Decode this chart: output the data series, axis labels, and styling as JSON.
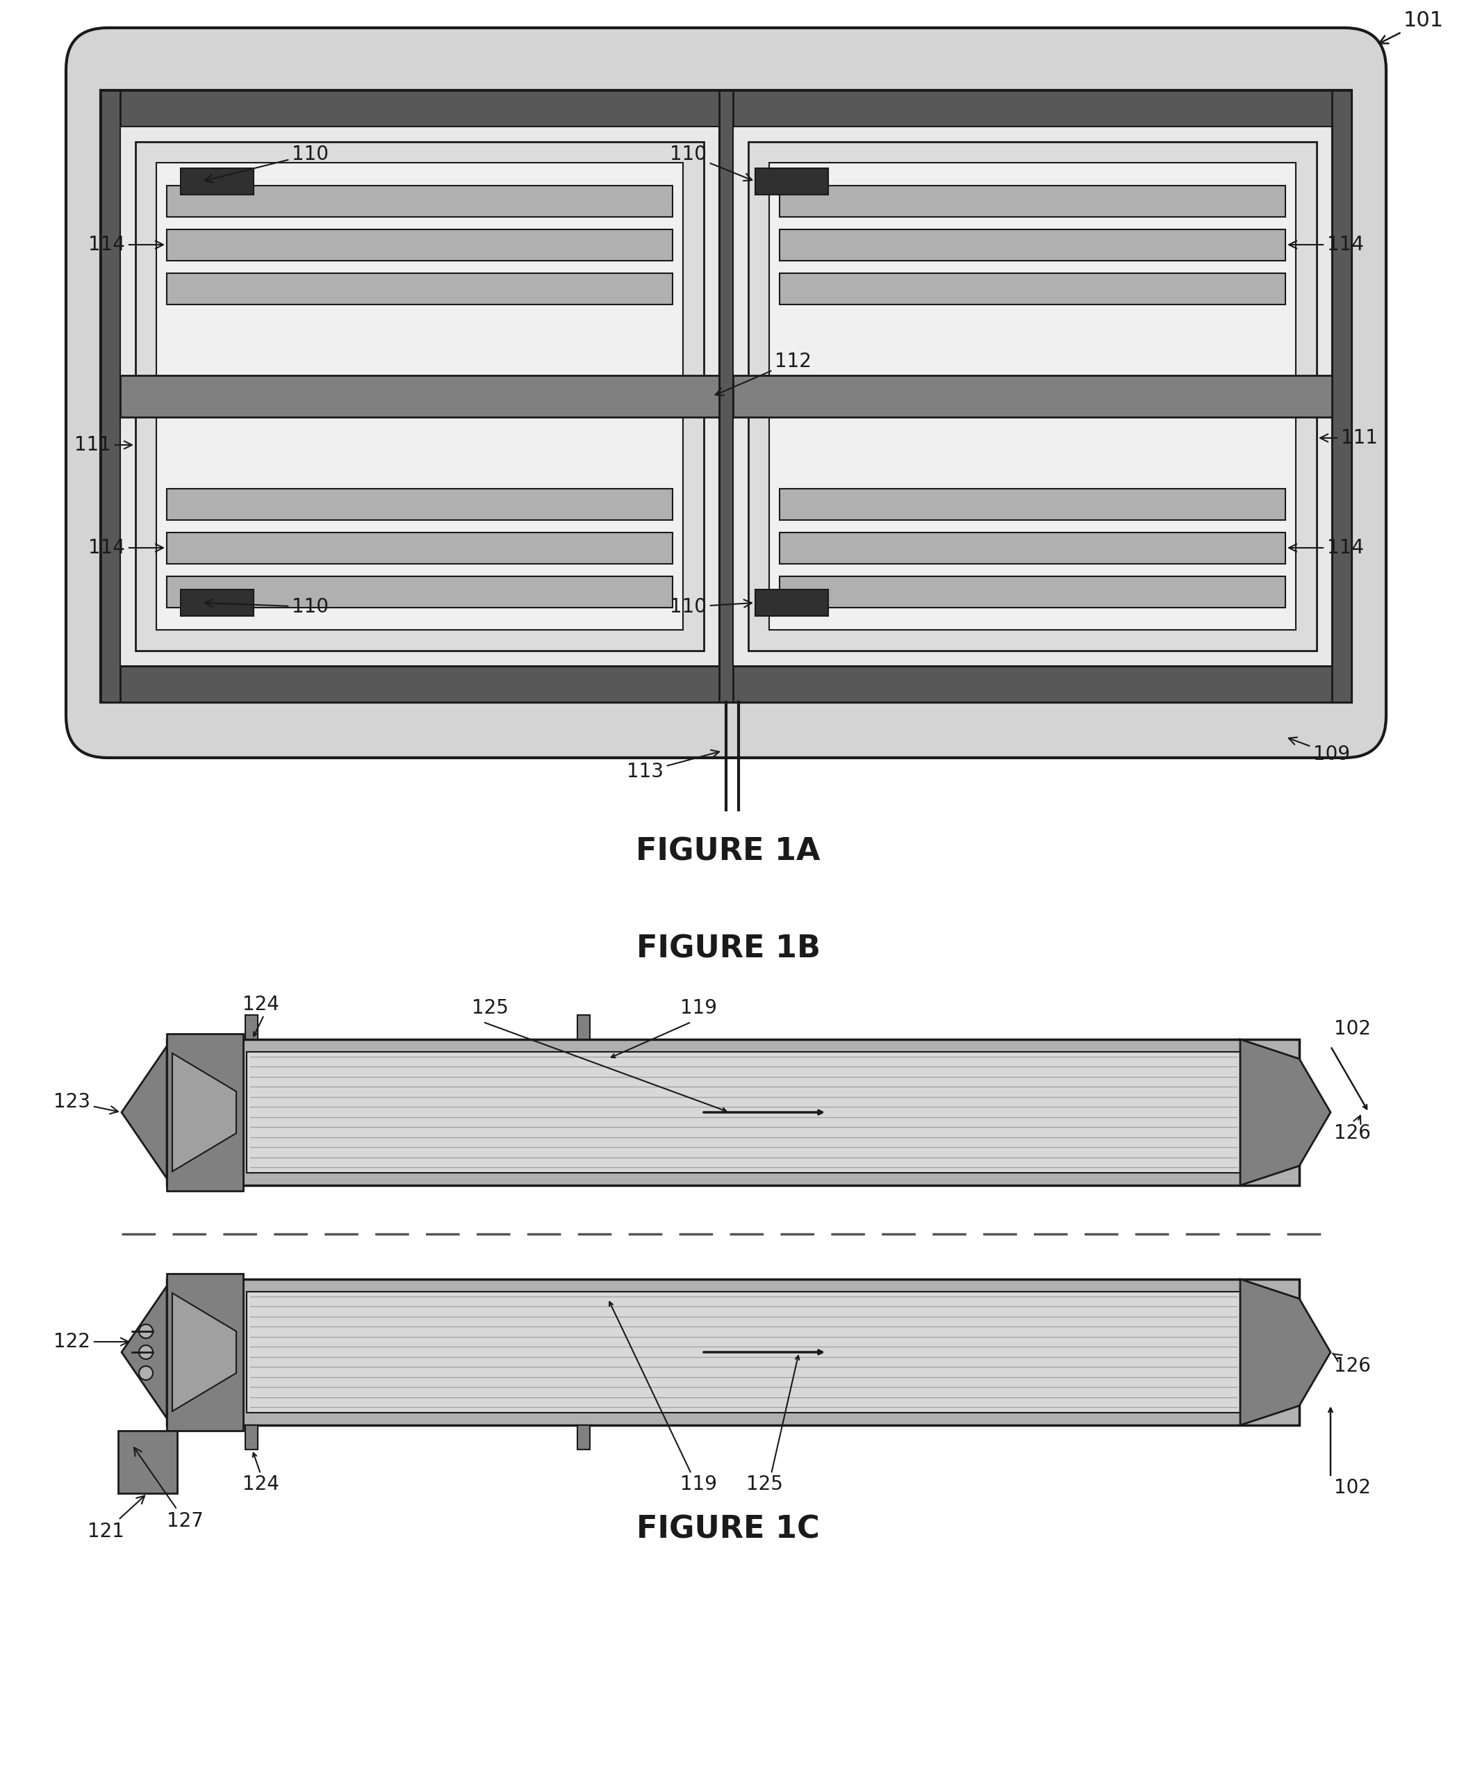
{
  "fig_width": 20.97,
  "fig_height": 25.46,
  "fig1a_label": "FIGURE 1A",
  "fig1b_label": "FIGURE 1B",
  "fig1c_label": "FIGURE 1C",
  "ref_101": "101",
  "ref_102": "102",
  "ref_109": "109",
  "ref_110": "110",
  "ref_111": "111",
  "ref_112": "112",
  "ref_113": "113",
  "ref_114": "114",
  "ref_119": "119",
  "ref_121": "121",
  "ref_122": "122",
  "ref_123": "123",
  "ref_124": "124",
  "ref_125": "125",
  "ref_126": "126",
  "ref_127": "127",
  "c_white": "#ffffff",
  "c_light": "#d4d4d4",
  "c_mid": "#b0b0b0",
  "c_dark": "#808080",
  "c_darker": "#585858",
  "c_darkest": "#303030",
  "c_line": "#1a1a1a",
  "c_text": "#1a1a1a",
  "c_hatch": "#c8c8c8"
}
